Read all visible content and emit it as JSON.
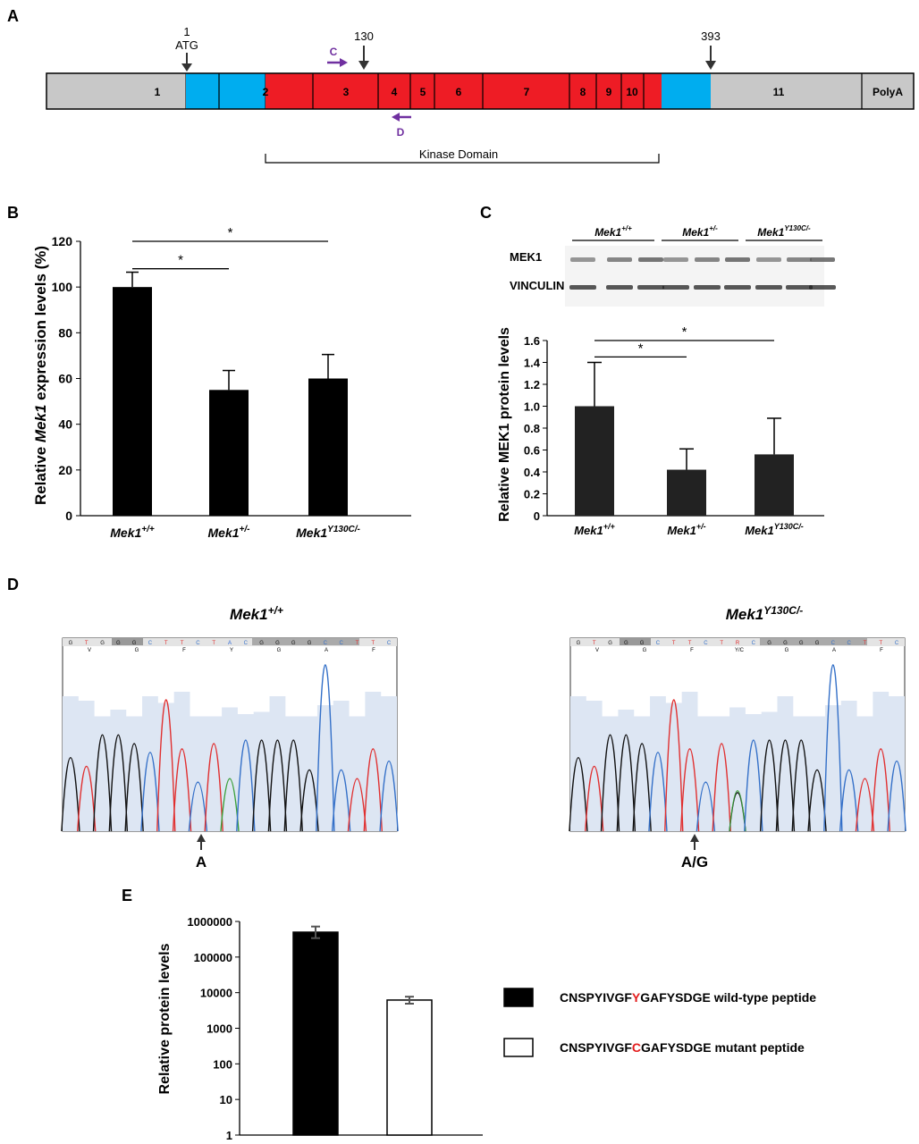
{
  "panels": {
    "a": {
      "label": "A",
      "markers": {
        "atg_pos": "1",
        "atg_label": "ATG",
        "p130": "130",
        "p393": "393"
      },
      "primers": {
        "forward": "C",
        "reverse": "D"
      },
      "exons": [
        "1",
        "2",
        "3",
        "4",
        "5",
        "6",
        "7",
        "8",
        "9",
        "10",
        "11",
        "PolyA"
      ],
      "domain_label": "Kinase Domain",
      "colors": {
        "utr": "#c8c8c8",
        "coding": "#00adef",
        "kinase": "#ee1c25",
        "primer": "#7030a0"
      }
    },
    "b": {
      "label": "B",
      "ylabel_prefix": "Relative ",
      "ylabel_gene": "Mek1",
      "ylabel_suffix": " expression levels (%)",
      "yticks": [
        "0",
        "20",
        "40",
        "60",
        "80",
        "100",
        "120"
      ],
      "cats": [
        {
          "base": "Mek1",
          "sup": "+/+"
        },
        {
          "base": "Mek1",
          "sup": "+/-"
        },
        {
          "base": "Mek1",
          "sup": "Y130C/-"
        }
      ],
      "sig": [
        "*",
        "*"
      ]
    },
    "c": {
      "label": "C",
      "blot_groups": [
        {
          "base": "Mek1",
          "sup": "+/+"
        },
        {
          "base": "Mek1",
          "sup": "+/-"
        },
        {
          "base": "Mek1",
          "sup": "Y130C/-"
        }
      ],
      "blot_rows": [
        "MEK1",
        "VINCULIN"
      ],
      "ylabel": "Relative MEK1 protein levels",
      "yticks": [
        "0",
        "0.2",
        "0.4",
        "0.6",
        "0.8",
        "1.0",
        "1.2",
        "1.4",
        "1.6"
      ],
      "cats": [
        {
          "base": "Mek1",
          "sup": "+/+"
        },
        {
          "base": "Mek1",
          "sup": "+/-"
        },
        {
          "base": "Mek1",
          "sup": "Y130C/-"
        }
      ],
      "sig": [
        "*",
        "*"
      ]
    },
    "d": {
      "label": "D",
      "left": {
        "base": "Mek1",
        "sup": "+/+",
        "call": "A",
        "bases": "GTGGGCTTCTACGGGGCCTTC",
        "aa": [
          "V",
          "G",
          "F",
          "Y",
          "G",
          "A",
          "F"
        ]
      },
      "right": {
        "base": "Mek1",
        "sup": "Y130C/-",
        "call": "A/G",
        "bases": "GTGGGCTTCTRCGGGGCCTTC",
        "aa": [
          "V",
          "G",
          "F",
          "Y/C",
          "G",
          "A",
          "F"
        ]
      }
    },
    "e": {
      "label": "E",
      "ylabel": "Relative protein levels",
      "yticks": [
        "1",
        "10",
        "100",
        "1000",
        "10000",
        "100000",
        "1000000"
      ],
      "legend": [
        {
          "pre": "CNSPYIVGF",
          "res": "Y",
          "post": "GAFYSDGE",
          "desc": "wild-type peptide"
        },
        {
          "pre": "CNSPYIVGF",
          "res": "C",
          "post": "GAFYSDGE",
          "desc": "mutant peptide"
        }
      ]
    }
  },
  "chart_data": [
    {
      "type": "bar",
      "title": "",
      "ylabel": "Relative Mek1 expression levels (%)",
      "categories": [
        "Mek1+/+",
        "Mek1+/-",
        "Mek1Y130C/-"
      ],
      "values": [
        100,
        55,
        60
      ],
      "errors": [
        6.5,
        8.5,
        10.5
      ],
      "ylim": [
        0,
        120
      ],
      "significance": [
        {
          "from": 0,
          "to": 1,
          "label": "*"
        },
        {
          "from": 0,
          "to": 2,
          "label": "*"
        }
      ]
    },
    {
      "type": "bar",
      "title": "",
      "ylabel": "Relative MEK1 protein levels",
      "categories": [
        "Mek1+/+",
        "Mek1+/-",
        "Mek1Y130C/-"
      ],
      "values": [
        1.0,
        0.42,
        0.56
      ],
      "errors": [
        0.4,
        0.19,
        0.33
      ],
      "ylim": [
        0,
        1.6
      ],
      "significance": [
        {
          "from": 0,
          "to": 1,
          "label": "*"
        },
        {
          "from": 0,
          "to": 2,
          "label": "*"
        }
      ]
    },
    {
      "type": "bar",
      "title": "",
      "ylabel": "Relative protein levels",
      "yscale": "log",
      "categories": [
        "CNSPYIVGFYGAFYSDGE wild-type peptide",
        "CNSPYIVGFCGAFYSDGE mutant peptide"
      ],
      "values": [
        500000,
        6200
      ],
      "error_low": [
        340000,
        4900
      ],
      "error_high": [
        720000,
        7700
      ],
      "ylim": [
        1,
        1000000
      ]
    }
  ]
}
